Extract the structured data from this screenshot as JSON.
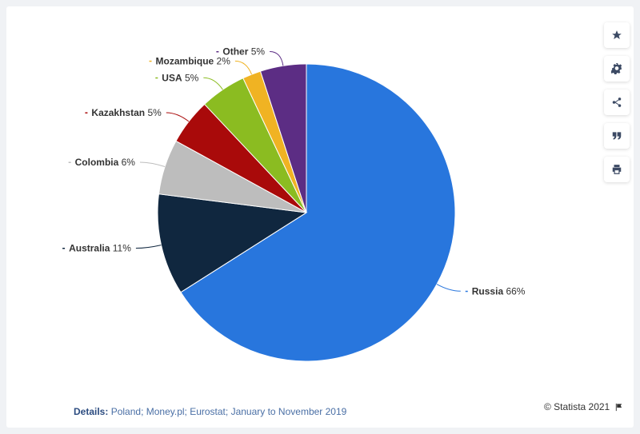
{
  "chart_data": {
    "type": "pie",
    "title": "",
    "slices": [
      {
        "label": "Russia",
        "value": 66,
        "value_label": "66%",
        "color": "#2876dd"
      },
      {
        "label": "Australia",
        "value": 11,
        "value_label": "11%",
        "color": "#10273f"
      },
      {
        "label": "Colombia",
        "value": 6,
        "value_label": "6%",
        "color": "#bdbdbd"
      },
      {
        "label": "Kazakhstan",
        "value": 5,
        "value_label": "5%",
        "color": "#a90a0a"
      },
      {
        "label": "USA",
        "value": 5,
        "value_label": "5%",
        "color": "#8bbc21"
      },
      {
        "label": "Mozambique",
        "value": 2,
        "value_label": "2%",
        "color": "#f0b323"
      },
      {
        "label": "Other",
        "value": 5,
        "value_label": "5%",
        "color": "#5c2d84"
      }
    ]
  },
  "toolbar": {
    "icons": [
      "star-icon",
      "gear-icon",
      "share-icon",
      "quote-icon",
      "print-icon"
    ]
  },
  "footer": {
    "details_label": "Details:",
    "details_text": "Poland; Money.pl; Eurostat; January to November 2019",
    "credit": "© Statista 2021",
    "flag_icon": "flag-icon"
  }
}
